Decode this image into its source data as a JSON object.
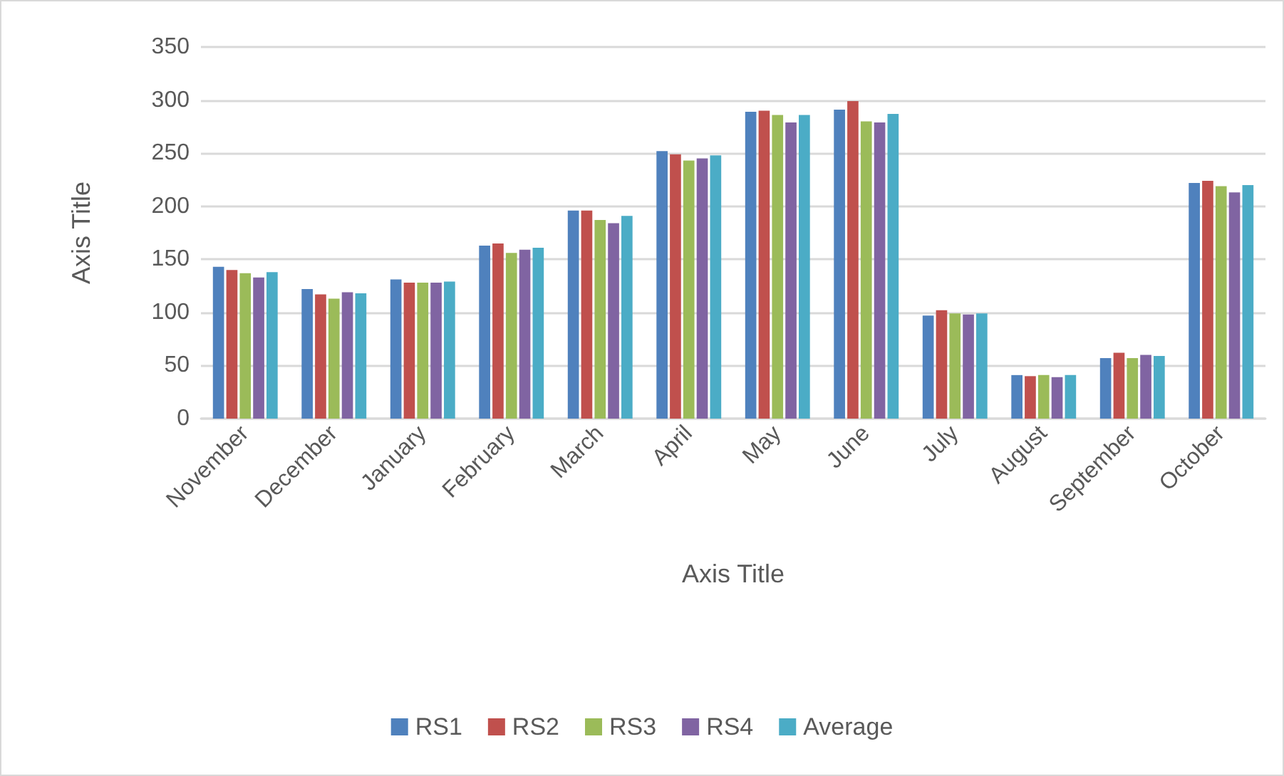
{
  "chart_data": {
    "type": "bar",
    "xlabel": "Axis Title",
    "ylabel": "Axis Title",
    "categories": [
      "November",
      "December",
      "January",
      "February",
      "March",
      "April",
      "May",
      "June",
      "July",
      "August",
      "September",
      "October"
    ],
    "series": [
      {
        "name": "RS1",
        "color": "#4f81bd",
        "values": [
          143,
          122,
          131,
          163,
          196,
          252,
          289,
          291,
          97,
          41,
          57,
          222
        ]
      },
      {
        "name": "RS2",
        "color": "#c0504d",
        "values": [
          140,
          117,
          128,
          165,
          196,
          249,
          290,
          299,
          102,
          40,
          62,
          224
        ]
      },
      {
        "name": "RS3",
        "color": "#9bbb59",
        "values": [
          137,
          113,
          128,
          156,
          187,
          243,
          286,
          280,
          99,
          41,
          57,
          219
        ]
      },
      {
        "name": "RS4",
        "color": "#8064a2",
        "values": [
          133,
          119,
          128,
          159,
          184,
          245,
          279,
          279,
          98,
          39,
          60,
          213
        ]
      },
      {
        "name": "Average",
        "color": "#4bacc6",
        "values": [
          138,
          118,
          129,
          161,
          191,
          248,
          286,
          287,
          99,
          41,
          59,
          220
        ]
      }
    ],
    "ylim": [
      0,
      350
    ],
    "yticks": [
      0,
      50,
      100,
      150,
      200,
      250,
      300,
      350
    ],
    "grid": "y",
    "legend": "bottom"
  }
}
